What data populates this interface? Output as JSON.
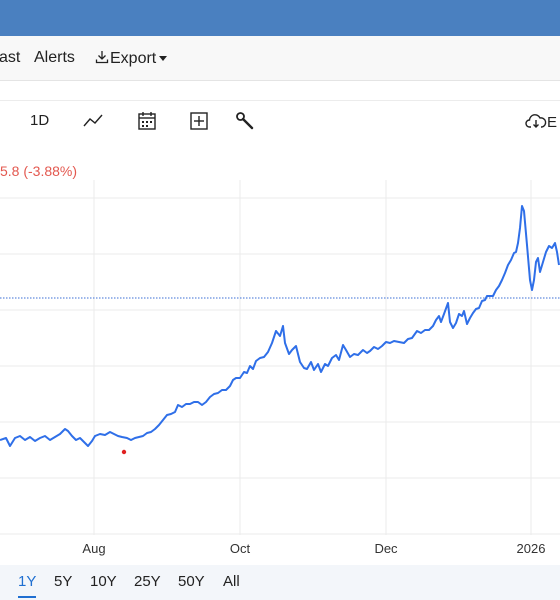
{
  "nav": {
    "items": [
      {
        "label": "ast"
      },
      {
        "label": "Alerts"
      },
      {
        "label": "Export"
      }
    ]
  },
  "toolbar": {
    "interval_label": "1D",
    "cloud_label": "E"
  },
  "change_text": "5.8 (-3.88%)",
  "range_buttons": [
    "1Y",
    "5Y",
    "10Y",
    "25Y",
    "50Y",
    "All"
  ],
  "colors": {
    "topbar": "#4a80c0",
    "line": "#2f6fe8",
    "change": "#e3584f",
    "active": "#1f6fd1",
    "reference_line": "#3b6fd6"
  },
  "chart_data": {
    "type": "line",
    "x_tick_labels": [
      "Aug",
      "Oct",
      "Dec",
      "2026"
    ],
    "series": [
      {
        "values": [
          [
            0,
            440
          ],
          [
            6,
            438
          ],
          [
            10,
            446
          ],
          [
            15,
            438
          ],
          [
            20,
            436
          ],
          [
            25,
            440
          ],
          [
            30,
            437
          ],
          [
            35,
            441
          ],
          [
            40,
            438
          ],
          [
            45,
            436
          ],
          [
            50,
            440
          ],
          [
            55,
            437
          ],
          [
            60,
            434
          ],
          [
            65,
            429
          ],
          [
            68,
            431
          ],
          [
            72,
            436
          ],
          [
            76,
            440
          ],
          [
            80,
            438
          ],
          [
            84,
            442
          ],
          [
            88,
            446
          ],
          [
            92,
            441
          ],
          [
            95,
            436
          ],
          [
            100,
            434
          ],
          [
            105,
            435
          ],
          [
            110,
            432
          ],
          [
            114,
            434
          ],
          [
            118,
            436
          ],
          [
            122,
            437
          ],
          [
            127,
            438
          ],
          [
            131,
            440
          ],
          [
            135,
            438
          ],
          [
            139,
            437
          ],
          [
            143,
            436
          ],
          [
            147,
            433
          ],
          [
            151,
            432
          ],
          [
            155,
            429
          ],
          [
            159,
            425
          ],
          [
            163,
            420
          ],
          [
            167,
            415
          ],
          [
            171,
            414
          ],
          [
            175,
            412
          ],
          [
            178,
            405
          ],
          [
            182,
            407
          ],
          [
            186,
            404
          ],
          [
            190,
            404
          ],
          [
            194,
            402
          ],
          [
            198,
            402
          ],
          [
            202,
            405
          ],
          [
            206,
            402
          ],
          [
            210,
            397
          ],
          [
            214,
            394
          ],
          [
            218,
            393
          ],
          [
            222,
            390
          ],
          [
            226,
            390
          ],
          [
            230,
            386
          ],
          [
            233,
            380
          ],
          [
            236,
            378
          ],
          [
            240,
            378
          ],
          [
            244,
            372
          ],
          [
            247,
            373
          ],
          [
            250,
            366
          ],
          [
            253,
            369
          ],
          [
            256,
            361
          ],
          [
            260,
            358
          ],
          [
            264,
            357
          ],
          [
            268,
            352
          ],
          [
            272,
            343
          ],
          [
            276,
            331
          ],
          [
            280,
            336
          ],
          [
            283,
            326
          ],
          [
            285,
            343
          ],
          [
            289,
            354
          ],
          [
            292,
            350
          ],
          [
            296,
            346
          ],
          [
            300,
            362
          ],
          [
            304,
            368
          ],
          [
            307,
            369
          ],
          [
            311,
            362
          ],
          [
            314,
            370
          ],
          [
            318,
            364
          ],
          [
            321,
            372
          ],
          [
            325,
            364
          ],
          [
            328,
            366
          ],
          [
            332,
            358
          ],
          [
            336,
            355
          ],
          [
            339,
            360
          ],
          [
            343,
            345
          ],
          [
            346,
            350
          ],
          [
            350,
            357
          ],
          [
            354,
            354
          ],
          [
            358,
            355
          ],
          [
            363,
            350
          ],
          [
            367,
            353
          ],
          [
            370,
            351
          ],
          [
            374,
            347
          ],
          [
            378,
            349
          ],
          [
            382,
            346
          ],
          [
            386,
            342
          ],
          [
            390,
            343
          ],
          [
            394,
            341
          ],
          [
            399,
            342
          ],
          [
            404,
            343
          ],
          [
            408,
            339
          ],
          [
            412,
            338
          ],
          [
            417,
            331
          ],
          [
            421,
            333
          ],
          [
            425,
            330
          ],
          [
            429,
            330
          ],
          [
            433,
            326
          ],
          [
            436,
            320
          ],
          [
            439,
            316
          ],
          [
            441,
            322
          ],
          [
            444,
            314
          ],
          [
            448,
            303
          ],
          [
            450,
            322
          ],
          [
            453,
            328
          ],
          [
            456,
            323
          ],
          [
            459,
            314
          ],
          [
            462,
            316
          ],
          [
            464,
            311
          ],
          [
            467,
            324
          ],
          [
            470,
            318
          ],
          [
            473,
            313
          ],
          [
            476,
            309
          ],
          [
            479,
            308
          ],
          [
            482,
            301
          ],
          [
            485,
            300
          ],
          [
            487,
            296
          ],
          [
            490,
            296
          ],
          [
            493,
            296
          ],
          [
            496,
            290
          ],
          [
            499,
            286
          ],
          [
            502,
            280
          ],
          [
            505,
            273
          ],
          [
            508,
            265
          ],
          [
            511,
            260
          ],
          [
            514,
            253
          ],
          [
            516,
            252
          ],
          [
            518,
            243
          ],
          [
            520,
            228
          ],
          [
            522,
            206
          ],
          [
            524,
            211
          ],
          [
            527,
            245
          ],
          [
            530,
            280
          ],
          [
            532,
            290
          ],
          [
            534,
            280
          ],
          [
            536,
            262
          ],
          [
            538,
            258
          ],
          [
            540,
            272
          ],
          [
            543,
            262
          ],
          [
            546,
            252
          ],
          [
            549,
            246
          ],
          [
            552,
            248
          ],
          [
            555,
            243
          ],
          [
            557,
            252
          ],
          [
            559,
            265
          ]
        ]
      }
    ],
    "reference_value": 298,
    "marker": [
      124,
      452
    ],
    "grid": true
  }
}
